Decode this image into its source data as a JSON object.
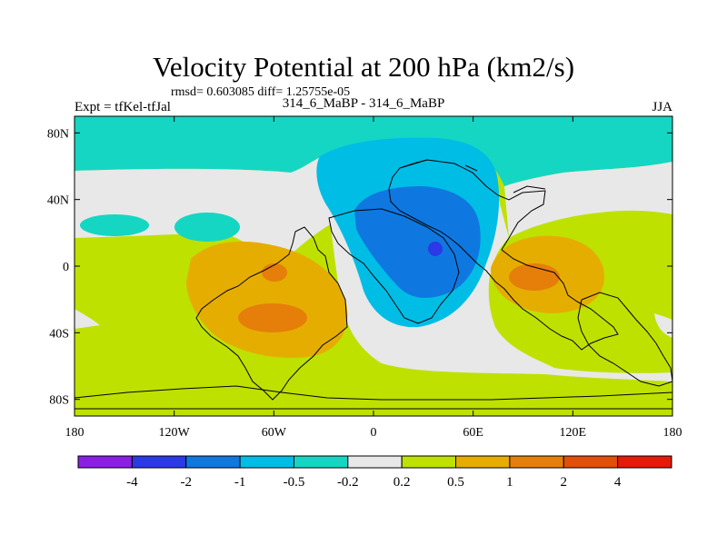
{
  "title": "Velocity Potential at 200 hPa (km2/s)",
  "stats": "rmsd= 0.603085 diff= 1.25755e-05",
  "left_label": "Expt = tfKel-tfJal",
  "center_label": "314_6_MaBP - 314_6_MaBP",
  "right_label": "JJA",
  "chart_data": {
    "type": "filled-contour map",
    "x_axis": {
      "range": [
        -180,
        180
      ],
      "ticks": [
        -180,
        -120,
        -60,
        0,
        60,
        120,
        180
      ],
      "tick_labels": [
        "180",
        "120W",
        "60W",
        "0",
        "60E",
        "120E",
        "180"
      ]
    },
    "y_axis": {
      "range": [
        -90,
        90
      ],
      "ticks": [
        80,
        40,
        0,
        -40,
        -80
      ],
      "tick_labels": [
        "80N",
        "40N",
        "0",
        "40S",
        "80S"
      ]
    },
    "contour_levels": [
      -4,
      -2,
      -1,
      -0.5,
      -0.2,
      0.2,
      0.5,
      1,
      2,
      4
    ],
    "colorbar_labels": [
      "-4",
      "-2",
      "-1",
      "-0.5",
      "-0.2",
      "0.2",
      "0.5",
      "1",
      "2",
      "4"
    ],
    "colors": [
      "#8b1ee6",
      "#2b39e6",
      "#0f78e0",
      "#00bde6",
      "#15d6c2",
      "#e8e8e8",
      "#bfe100",
      "#e5ad00",
      "#e67e0a",
      "#e34e08",
      "#e51a0a"
    ],
    "features": [
      {
        "name": "Eastern hemisphere minimum",
        "range_bin": "-2 to -1",
        "center": [
          30,
          10
        ]
      },
      {
        "name": "Minimum core",
        "range_bin": "-4 to -2",
        "center": [
          38,
          12
        ]
      },
      {
        "name": "Southern Hemisphere ocean maximum (west)",
        "range_bin": "1 to 2",
        "center": [
          -70,
          -30
        ]
      },
      {
        "name": "Indian Ocean maximum",
        "range_bin": "1 to 2",
        "center": [
          95,
          -8
        ]
      },
      {
        "name": "Arctic band",
        "range_bin": "-0.5 to -0.2",
        "center": [
          0,
          80
        ]
      }
    ]
  }
}
